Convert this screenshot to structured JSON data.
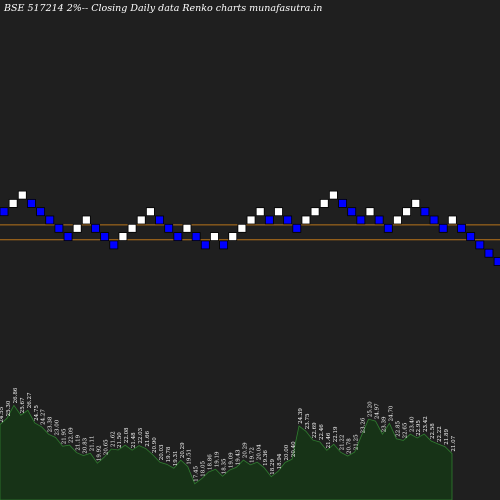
{
  "chart_data": {
    "type": "renko",
    "title": "BSE 517214  2%-- Closing Daily data Renko  charts munafasutra.in",
    "bricks": [
      {
        "col": 0,
        "lvl": 1,
        "dir": "down"
      },
      {
        "col": 1,
        "lvl": 2,
        "dir": "up"
      },
      {
        "col": 2,
        "lvl": 3,
        "dir": "up"
      },
      {
        "col": 3,
        "lvl": 2,
        "dir": "down"
      },
      {
        "col": 4,
        "lvl": 1,
        "dir": "down"
      },
      {
        "col": 5,
        "lvl": 0,
        "dir": "down"
      },
      {
        "col": 6,
        "lvl": -1,
        "dir": "down"
      },
      {
        "col": 7,
        "lvl": -2,
        "dir": "down"
      },
      {
        "col": 8,
        "lvl": -1,
        "dir": "up"
      },
      {
        "col": 9,
        "lvl": 0,
        "dir": "up"
      },
      {
        "col": 10,
        "lvl": -1,
        "dir": "down"
      },
      {
        "col": 11,
        "lvl": -2,
        "dir": "down"
      },
      {
        "col": 12,
        "lvl": -3,
        "dir": "down"
      },
      {
        "col": 13,
        "lvl": -2,
        "dir": "up"
      },
      {
        "col": 14,
        "lvl": -1,
        "dir": "up"
      },
      {
        "col": 15,
        "lvl": 0,
        "dir": "up"
      },
      {
        "col": 16,
        "lvl": 1,
        "dir": "up"
      },
      {
        "col": 17,
        "lvl": 0,
        "dir": "down"
      },
      {
        "col": 18,
        "lvl": -1,
        "dir": "down"
      },
      {
        "col": 19,
        "lvl": -2,
        "dir": "down"
      },
      {
        "col": 20,
        "lvl": -1,
        "dir": "up"
      },
      {
        "col": 21,
        "lvl": -2,
        "dir": "down"
      },
      {
        "col": 22,
        "lvl": -3,
        "dir": "down"
      },
      {
        "col": 23,
        "lvl": -2,
        "dir": "up"
      },
      {
        "col": 24,
        "lvl": -3,
        "dir": "down"
      },
      {
        "col": 25,
        "lvl": -2,
        "dir": "up"
      },
      {
        "col": 26,
        "lvl": -1,
        "dir": "up"
      },
      {
        "col": 27,
        "lvl": 0,
        "dir": "up"
      },
      {
        "col": 28,
        "lvl": 1,
        "dir": "up"
      },
      {
        "col": 29,
        "lvl": 0,
        "dir": "down"
      },
      {
        "col": 30,
        "lvl": 1,
        "dir": "up"
      },
      {
        "col": 31,
        "lvl": 0,
        "dir": "down"
      },
      {
        "col": 32,
        "lvl": -1,
        "dir": "down"
      },
      {
        "col": 33,
        "lvl": 0,
        "dir": "up"
      },
      {
        "col": 34,
        "lvl": 1,
        "dir": "up"
      },
      {
        "col": 35,
        "lvl": 2,
        "dir": "up"
      },
      {
        "col": 36,
        "lvl": 3,
        "dir": "up"
      },
      {
        "col": 37,
        "lvl": 2,
        "dir": "down"
      },
      {
        "col": 38,
        "lvl": 1,
        "dir": "down"
      },
      {
        "col": 39,
        "lvl": 0,
        "dir": "down"
      },
      {
        "col": 40,
        "lvl": 1,
        "dir": "up"
      },
      {
        "col": 41,
        "lvl": 0,
        "dir": "down"
      },
      {
        "col": 42,
        "lvl": -1,
        "dir": "down"
      },
      {
        "col": 43,
        "lvl": 0,
        "dir": "up"
      },
      {
        "col": 44,
        "lvl": 1,
        "dir": "up"
      },
      {
        "col": 45,
        "lvl": 2,
        "dir": "up"
      },
      {
        "col": 46,
        "lvl": 1,
        "dir": "down"
      },
      {
        "col": 47,
        "lvl": 0,
        "dir": "down"
      },
      {
        "col": 48,
        "lvl": -1,
        "dir": "down"
      },
      {
        "col": 49,
        "lvl": 0,
        "dir": "up"
      },
      {
        "col": 50,
        "lvl": -1,
        "dir": "down"
      },
      {
        "col": 51,
        "lvl": -2,
        "dir": "down"
      },
      {
        "col": 52,
        "lvl": -3,
        "dir": "down"
      },
      {
        "col": 53,
        "lvl": -4,
        "dir": "down"
      },
      {
        "col": 54,
        "lvl": -5,
        "dir": "down"
      }
    ],
    "support_lines": [
      {
        "lvl": -0.1,
        "color": "#b8741a"
      },
      {
        "lvl": -1.9,
        "color": "#b8741a"
      }
    ],
    "volume": [
      {
        "v": 24.55,
        "label": "24.55"
      },
      {
        "v": 25.3,
        "label": "25.30"
      },
      {
        "v": 26.86,
        "label": "26.86"
      },
      {
        "v": 25.67,
        "label": "25.67"
      },
      {
        "v": 26.27,
        "label": "26.27"
      },
      {
        "v": 24.75,
        "label": "24.75"
      },
      {
        "v": 24.27,
        "label": "24.27"
      },
      {
        "v": 23.38,
        "label": "23.38"
      },
      {
        "v": 23.0,
        "label": "23.00"
      },
      {
        "v": 21.95,
        "label": "21.95"
      },
      {
        "v": 22.09,
        "label": "22.09"
      },
      {
        "v": 21.19,
        "label": "21.19"
      },
      {
        "v": 20.83,
        "label": "20.83"
      },
      {
        "v": 21.11,
        "label": "21.11"
      },
      {
        "v": 19.92,
        "label": "19.92"
      },
      {
        "v": 20.65,
        "label": "20.65"
      },
      {
        "v": 21.62,
        "label": "21.62"
      },
      {
        "v": 21.5,
        "label": "21.50"
      },
      {
        "v": 22.08,
        "label": "22.08"
      },
      {
        "v": 21.48,
        "label": "21.48"
      },
      {
        "v": 22.03,
        "label": "22.03"
      },
      {
        "v": 21.66,
        "label": "21.66"
      },
      {
        "v": 20.9,
        "label": "20.90"
      },
      {
        "v": 20.03,
        "label": "20.03"
      },
      {
        "v": 19.78,
        "label": "19.78"
      },
      {
        "v": 19.31,
        "label": "19.31"
      },
      {
        "v": 20.29,
        "label": "20.29"
      },
      {
        "v": 19.51,
        "label": "19.51"
      },
      {
        "v": 17.45,
        "label": "17.45"
      },
      {
        "v": 18.05,
        "label": "18.05"
      },
      {
        "v": 18.86,
        "label": "18.86"
      },
      {
        "v": 19.19,
        "label": "19.19"
      },
      {
        "v": 18.35,
        "label": "18.35"
      },
      {
        "v": 19.09,
        "label": "19.09"
      },
      {
        "v": 19.43,
        "label": "19.43"
      },
      {
        "v": 20.29,
        "label": "20.29"
      },
      {
        "v": 19.72,
        "label": "19.72"
      },
      {
        "v": 20.04,
        "label": "20.04"
      },
      {
        "v": 19.36,
        "label": "19.36"
      },
      {
        "v": 18.29,
        "label": "18.29"
      },
      {
        "v": 18.94,
        "label": "18.94"
      },
      {
        "v": 20.0,
        "label": "20.00"
      },
      {
        "v": 20.4,
        "label": "20.40"
      },
      {
        "v": 24.39,
        "label": "24.39"
      },
      {
        "v": 23.75,
        "label": "23.75"
      },
      {
        "v": 22.69,
        "label": "22.69"
      },
      {
        "v": 22.46,
        "label": "22.46"
      },
      {
        "v": 21.46,
        "label": "21.46"
      },
      {
        "v": 22.19,
        "label": "22.19"
      },
      {
        "v": 21.22,
        "label": "21.22"
      },
      {
        "v": 20.78,
        "label": "20.78"
      },
      {
        "v": 21.25,
        "label": "21.25"
      },
      {
        "v": 23.26,
        "label": "23.26"
      },
      {
        "v": 25.2,
        "label": "25.20"
      },
      {
        "v": 24.97,
        "label": "24.97"
      },
      {
        "v": 23.39,
        "label": "23.39"
      },
      {
        "v": 24.7,
        "label": "24.70"
      },
      {
        "v": 22.85,
        "label": "22.85"
      },
      {
        "v": 22.65,
        "label": "22.65"
      },
      {
        "v": 23.4,
        "label": "23.40"
      },
      {
        "v": 22.95,
        "label": "22.95"
      },
      {
        "v": 23.42,
        "label": "23.42"
      },
      {
        "v": 22.58,
        "label": "22.58"
      },
      {
        "v": 22.22,
        "label": "22.22"
      },
      {
        "v": 21.89,
        "label": "21.89"
      },
      {
        "v": 21.07,
        "label": "21.07"
      }
    ],
    "colors": {
      "background": "#1f1f1f",
      "brick_up": "#ffffff",
      "brick_down": "#0000ff",
      "volume_fill": "#173317",
      "volume_line": "#2f7d2f",
      "support_line": "#b8741a"
    }
  }
}
